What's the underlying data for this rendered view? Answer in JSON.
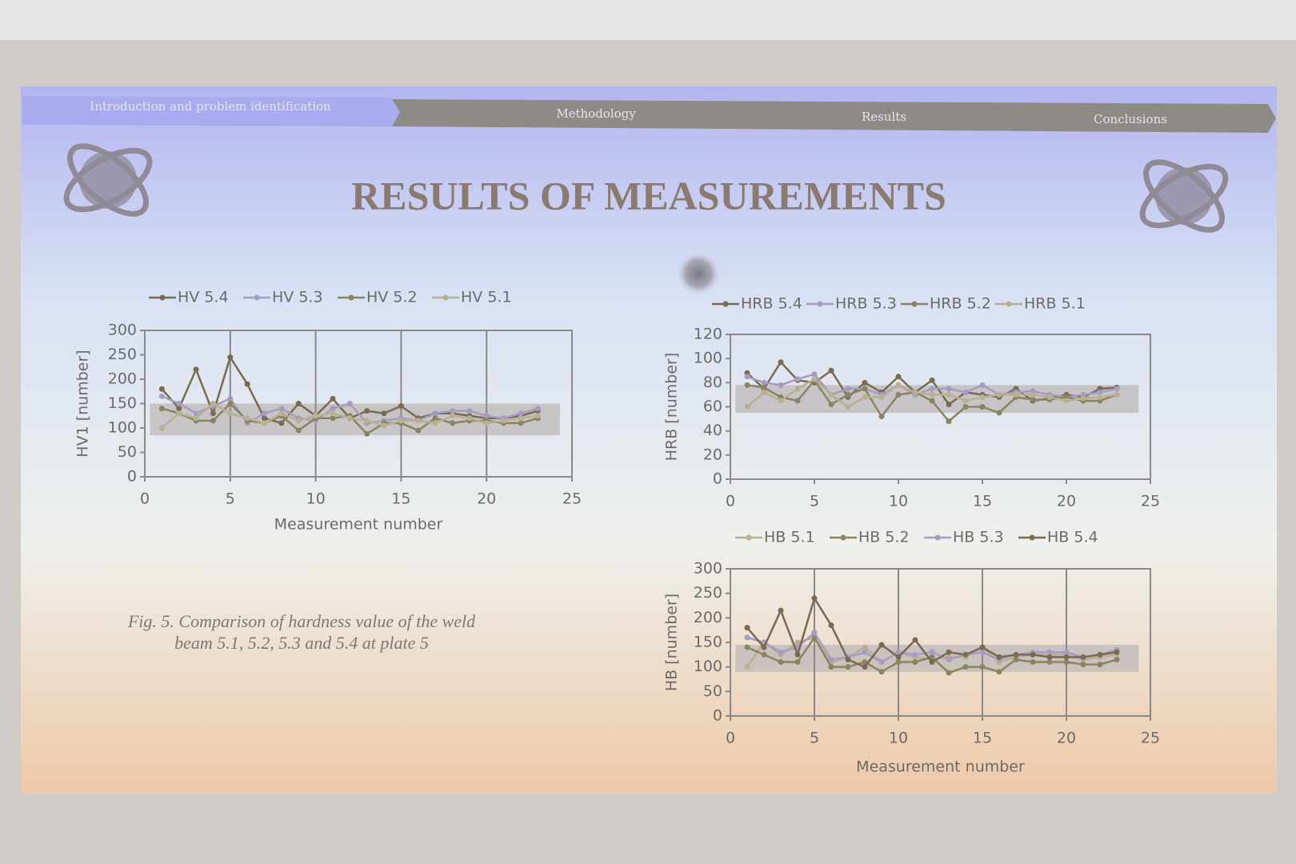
{
  "slide": {
    "nav": [
      "Introduction and problem identification",
      "Methodology",
      "Results",
      "Conclusions"
    ],
    "title": "RESULTS OF MEASUREMENTS",
    "caption": [
      "Fig. 5. Comparison of hardness value of the weld",
      "beam 5.1, 5.2, 5.3 and 5.4 at plate 5"
    ]
  },
  "chart_data": [
    {
      "type": "line",
      "y_label": "HV1 [number]",
      "x_label": "Measurement number",
      "x": [
        1,
        2,
        3,
        4,
        5,
        6,
        7,
        8,
        9,
        10,
        11,
        12,
        13,
        14,
        15,
        16,
        17,
        18,
        19,
        20,
        21,
        22,
        23
      ],
      "xlim": [
        0,
        25
      ],
      "xticks": [
        0,
        5,
        10,
        15,
        20,
        25
      ],
      "ylim": [
        0,
        300
      ],
      "yticks": [
        0,
        50,
        100,
        150,
        200,
        250,
        300
      ],
      "x_grid": true,
      "band": [
        85,
        150
      ],
      "series": [
        {
          "name": "HV 5.4",
          "color": "#7a6a50",
          "values": [
            180,
            140,
            220,
            130,
            245,
            190,
            120,
            110,
            150,
            125,
            160,
            120,
            135,
            130,
            145,
            120,
            130,
            130,
            125,
            120,
            120,
            125,
            135
          ]
        },
        {
          "name": "HV 5.3",
          "color": "#a69cc2",
          "values": [
            165,
            150,
            130,
            145,
            160,
            110,
            130,
            140,
            120,
            115,
            140,
            150,
            110,
            115,
            120,
            115,
            130,
            135,
            135,
            125,
            120,
            130,
            140
          ]
        },
        {
          "name": "HV 5.2",
          "color": "#8a8460",
          "values": [
            140,
            130,
            115,
            115,
            150,
            115,
            110,
            125,
            95,
            120,
            120,
            125,
            88,
            110,
            110,
            95,
            120,
            110,
            115,
            115,
            110,
            110,
            120
          ]
        },
        {
          "name": "HV 5.1",
          "color": "#b8b090",
          "values": [
            100,
            130,
            120,
            150,
            130,
            120,
            110,
            130,
            115,
            125,
            130,
            120,
            115,
            105,
            115,
            115,
            110,
            125,
            120,
            110,
            115,
            120,
            125
          ]
        }
      ]
    },
    {
      "type": "line",
      "y_label": "HRB [number]",
      "x": [
        1,
        2,
        3,
        4,
        5,
        6,
        7,
        8,
        9,
        10,
        11,
        12,
        13,
        14,
        15,
        16,
        17,
        18,
        19,
        20,
        21,
        22,
        23
      ],
      "xlim": [
        0,
        25
      ],
      "xticks": [
        0,
        5,
        10,
        15,
        20,
        25
      ],
      "ylim": [
        0,
        120
      ],
      "yticks": [
        0,
        20,
        40,
        60,
        80,
        100,
        120
      ],
      "x_grid": false,
      "band": [
        55,
        78
      ],
      "series": [
        {
          "name": "HRB 5.4",
          "color": "#7a6a50",
          "values": [
            88,
            75,
            97,
            82,
            80,
            90,
            68,
            80,
            72,
            85,
            72,
            82,
            62,
            72,
            70,
            68,
            75,
            65,
            67,
            70,
            68,
            75,
            76
          ]
        },
        {
          "name": "HRB 5.3",
          "color": "#a69cc2",
          "values": [
            85,
            80,
            78,
            83,
            87,
            70,
            75,
            75,
            70,
            78,
            70,
            75,
            75,
            72,
            78,
            70,
            72,
            73,
            70,
            68,
            70,
            72,
            75
          ]
        },
        {
          "name": "HRB 5.2",
          "color": "#8a8460",
          "values": [
            78,
            76,
            68,
            65,
            82,
            62,
            70,
            75,
            52,
            70,
            72,
            65,
            48,
            60,
            60,
            55,
            68,
            66,
            66,
            68,
            65,
            65,
            70
          ]
        },
        {
          "name": "HRB 5.1",
          "color": "#b8b090",
          "values": [
            60,
            72,
            65,
            75,
            83,
            70,
            60,
            68,
            68,
            78,
            72,
            70,
            70,
            65,
            68,
            70,
            70,
            70,
            68,
            65,
            67,
            68,
            70
          ]
        }
      ]
    },
    {
      "type": "line",
      "y_label": "HB [number]",
      "x_label": "Measurement number",
      "x": [
        1,
        2,
        3,
        4,
        5,
        6,
        7,
        8,
        9,
        10,
        11,
        12,
        13,
        14,
        15,
        16,
        17,
        18,
        19,
        20,
        21,
        22,
        23
      ],
      "xlim": [
        0,
        25
      ],
      "xticks": [
        0,
        5,
        10,
        15,
        20,
        25
      ],
      "ylim": [
        0,
        300
      ],
      "yticks": [
        0,
        50,
        100,
        150,
        200,
        250,
        300
      ],
      "x_grid": true,
      "band": [
        90,
        145
      ],
      "series": [
        {
          "name": "HB 5.1",
          "color": "#b8b090",
          "values": [
            100,
            150,
            125,
            150,
            160,
            110,
            120,
            140,
            110,
            130,
            120,
            115,
            120,
            120,
            140,
            110,
            120,
            125,
            125,
            125,
            115,
            120,
            125
          ]
        },
        {
          "name": "HB 5.2",
          "color": "#8a8460",
          "values": [
            140,
            125,
            110,
            110,
            160,
            100,
            100,
            110,
            90,
            110,
            110,
            120,
            88,
            100,
            100,
            90,
            115,
            110,
            110,
            110,
            105,
            105,
            115
          ]
        },
        {
          "name": "HB 5.3",
          "color": "#a69cc2",
          "values": [
            160,
            150,
            130,
            140,
            170,
            115,
            120,
            130,
            110,
            130,
            125,
            130,
            115,
            125,
            130,
            115,
            125,
            130,
            130,
            130,
            120,
            125,
            135
          ]
        },
        {
          "name": "HB 5.4",
          "color": "#7a6a50",
          "values": [
            180,
            140,
            215,
            125,
            240,
            185,
            115,
            100,
            145,
            120,
            155,
            110,
            130,
            125,
            140,
            120,
            125,
            125,
            120,
            120,
            120,
            125,
            130
          ]
        }
      ]
    }
  ]
}
